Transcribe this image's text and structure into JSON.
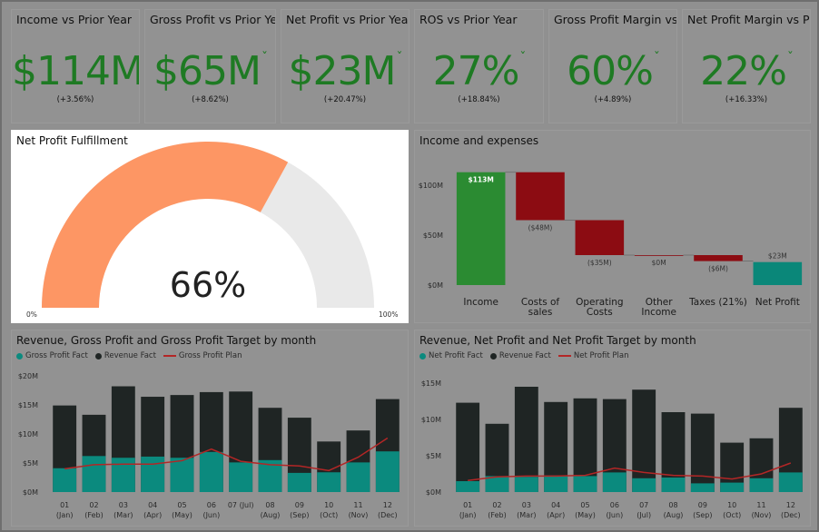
{
  "kpis": [
    {
      "title": "Income vs Prior Year",
      "value": "$114M",
      "delta": "(+3.56%)"
    },
    {
      "title": "Gross Profit vs Prior Year",
      "value": "$65M",
      "delta": "(+8.62%)"
    },
    {
      "title": "Net Profit vs Prior Year",
      "value": "$23M",
      "delta": "(+20.47%)"
    },
    {
      "title": "ROS vs Prior Year",
      "value": "27%",
      "delta": "(+18.84%)"
    },
    {
      "title": "Gross Profit Margin vs P...",
      "value": "60%",
      "delta": "(+4.89%)"
    },
    {
      "title": "Net Profit Margin vs Pri...",
      "value": "22%",
      "delta": "(+16.33%)"
    }
  ],
  "kpi_check": "ˇ",
  "colors": {
    "positive": "#1e7a23",
    "gauge_fill": "#fd9664",
    "gauge_track": "#e9e9e9",
    "teal": "#0b8a7e",
    "dark": "#1f2524",
    "plan": "#b32626",
    "income": "#2b8b32",
    "expense": "#8c0c12",
    "waterfall_total": "#0a8779"
  },
  "gauge": {
    "title": "Net Profit Fulfillment",
    "value_label": "66%",
    "min_label": "0%",
    "max_label": "100%"
  },
  "chart_data": [
    {
      "type": "gauge",
      "title": "Net Profit Fulfillment",
      "value": 66,
      "min": 0,
      "max": 100
    },
    {
      "type": "waterfall",
      "title": "Income and expenses",
      "categories": [
        "Income",
        "Costs of sales",
        "Operating Costs",
        "Other Income",
        "Taxes (21%)",
        "Net Profit"
      ],
      "category_lines": [
        [
          "Income"
        ],
        [
          "Costs of",
          "sales"
        ],
        [
          "Operating",
          "Costs"
        ],
        [
          "Other",
          "Income"
        ],
        [
          "Taxes (21%)"
        ],
        [
          "Net Profit"
        ]
      ],
      "values": [
        113,
        -48,
        -35,
        0,
        -6,
        23
      ],
      "kinds": [
        "income",
        "expense",
        "expense",
        "expense",
        "expense",
        "total"
      ],
      "data_labels": [
        "$113M",
        "($48M)",
        "($35M)",
        "$0M",
        "($6M)",
        "$23M"
      ],
      "ylim": [
        0,
        120
      ],
      "yticks": [
        0,
        50,
        100
      ],
      "ytick_labels": [
        "$0M",
        "$50M",
        "$100M"
      ]
    },
    {
      "type": "bar",
      "title": "Revenue, Gross Profit and Gross Profit Target by month",
      "categories": [
        [
          "01",
          "(Jan)"
        ],
        [
          "02",
          "(Feb)"
        ],
        [
          "03",
          "(Mar)"
        ],
        [
          "04",
          "(Apr)"
        ],
        [
          "05",
          "(May)"
        ],
        [
          "06",
          "(Jun)"
        ],
        [
          "07 (Jul)",
          ""
        ],
        [
          "08",
          "(Aug)"
        ],
        [
          "09",
          "(Sep)"
        ],
        [
          "10",
          "(Oct)"
        ],
        [
          "11",
          "(Nov)"
        ],
        [
          "12",
          "(Dec)"
        ]
      ],
      "ylim": [
        0,
        20
      ],
      "yticks": [
        0,
        5,
        10,
        15,
        20
      ],
      "ytick_labels": [
        "$0M",
        "$5M",
        "$10M",
        "$15M",
        "$20M"
      ],
      "series": [
        {
          "name": "Gross Profit Fact",
          "kind": "bar",
          "values": [
            4.1,
            6.2,
            5.9,
            6.1,
            5.9,
            6.9,
            5.1,
            5.5,
            3.3,
            3.4,
            5.1,
            7.0
          ]
        },
        {
          "name": "Revenue Fact",
          "kind": "bar",
          "values": [
            14.9,
            13.3,
            18.2,
            16.4,
            16.7,
            17.2,
            17.3,
            14.5,
            12.8,
            8.7,
            10.6,
            16.0
          ]
        },
        {
          "name": "Gross Profit Plan",
          "kind": "line",
          "values": [
            4.0,
            4.7,
            4.8,
            4.8,
            5.4,
            7.4,
            5.3,
            4.7,
            4.5,
            3.7,
            6.0,
            9.3
          ]
        }
      ]
    },
    {
      "type": "bar",
      "title": "Revenue, Net Profit and Net Profit Target by month",
      "categories": [
        [
          "01",
          "(Jan)"
        ],
        [
          "02",
          "(Feb)"
        ],
        [
          "03",
          "(Mar)"
        ],
        [
          "04",
          "(Apr)"
        ],
        [
          "05",
          "(May)"
        ],
        [
          "06",
          "(Jun)"
        ],
        [
          "07",
          "(Jul)"
        ],
        [
          "08",
          "(Aug)"
        ],
        [
          "09",
          "(Sep)"
        ],
        [
          "10",
          "(Oct)"
        ],
        [
          "11",
          "(Nov)"
        ],
        [
          "12",
          "(Dec)"
        ]
      ],
      "ylim": [
        0,
        16
      ],
      "yticks": [
        0,
        5,
        10,
        15
      ],
      "ytick_labels": [
        "$0M",
        "$5M",
        "$10M",
        "$15M"
      ],
      "series": [
        {
          "name": "Net Profit Fact",
          "kind": "bar",
          "values": [
            1.5,
            2.2,
            2.1,
            2.3,
            2.2,
            2.7,
            1.9,
            2.0,
            1.2,
            1.3,
            1.9,
            2.7
          ]
        },
        {
          "name": "Revenue Fact",
          "kind": "bar",
          "values": [
            12.3,
            9.4,
            14.5,
            12.4,
            12.9,
            12.8,
            14.1,
            11.0,
            10.8,
            6.8,
            7.4,
            11.6
          ]
        },
        {
          "name": "Net Profit Plan",
          "kind": "line",
          "values": [
            1.6,
            2.1,
            2.2,
            2.2,
            2.3,
            3.3,
            2.7,
            2.3,
            2.2,
            1.8,
            2.5,
            4.0
          ]
        }
      ]
    }
  ]
}
